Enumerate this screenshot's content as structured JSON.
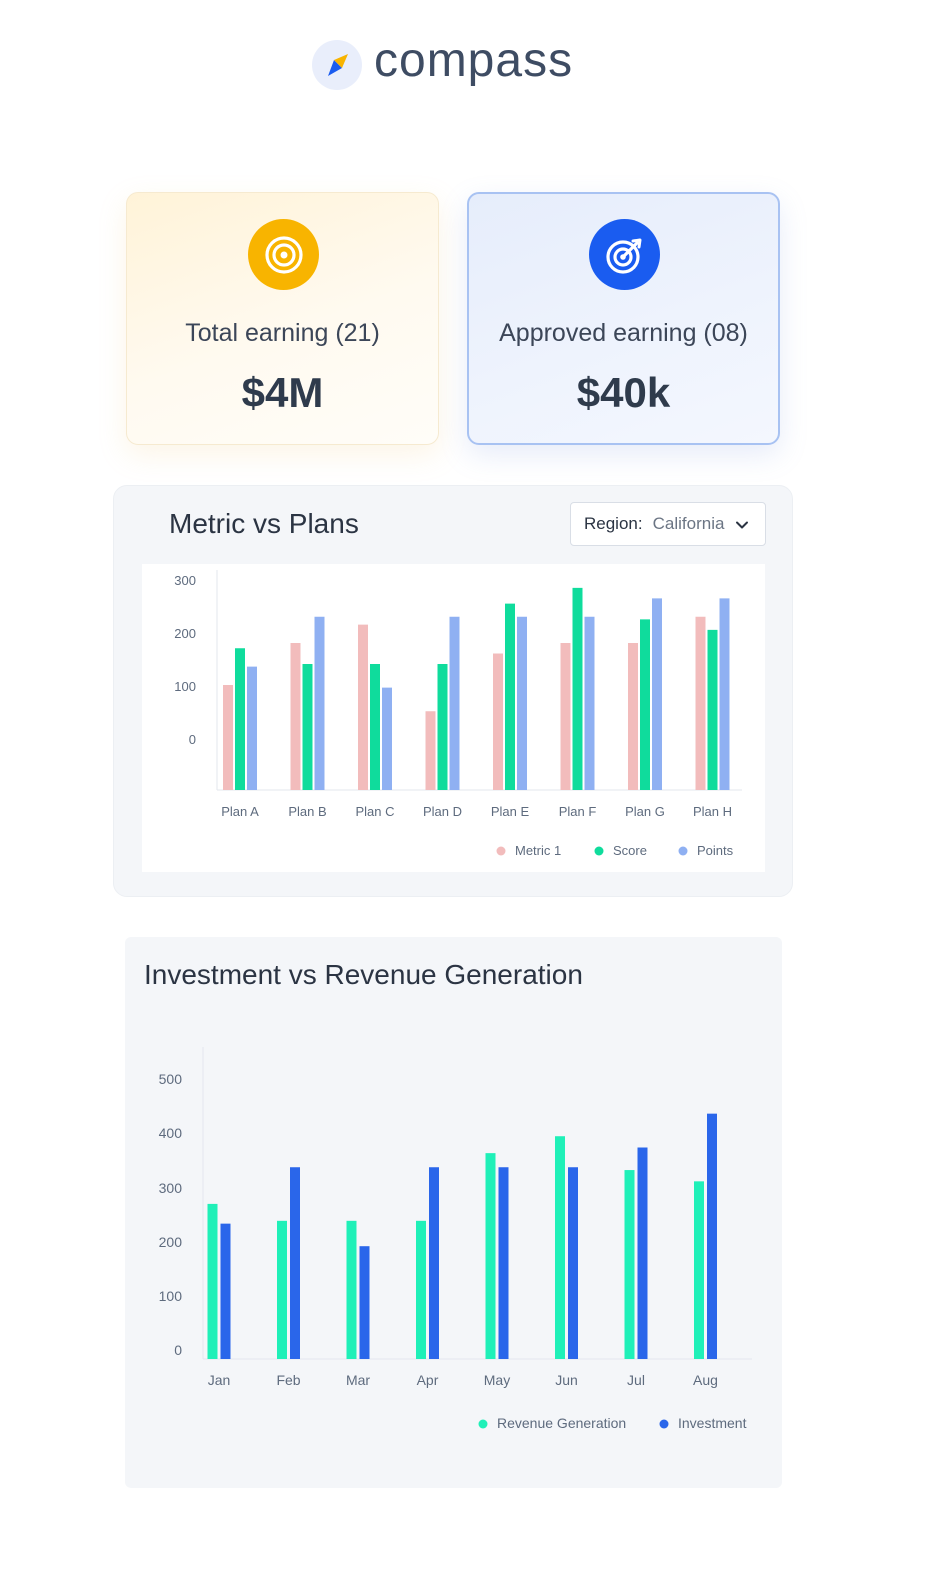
{
  "brand": {
    "name": "compass"
  },
  "cards": [
    {
      "label": "Total earning (21)",
      "value": "$4M",
      "icon": "target-icon",
      "color": "#f8b400"
    },
    {
      "label": "Approved earning (08)",
      "value": "$40k",
      "icon": "target-arrow-icon",
      "color": "#1a5cf0"
    }
  ],
  "metric_panel": {
    "title": "Metric vs Plans",
    "region_label": "Region:",
    "region_value": "California"
  },
  "invest_panel": {
    "title": "Investment vs Revenue Generation"
  },
  "chart_data": [
    {
      "type": "bar",
      "title": "Metric vs Plans",
      "categories": [
        "Plan A",
        "Plan B",
        "Plan C",
        "Plan D",
        "Plan E",
        "Plan F",
        "Plan G",
        "Plan H"
      ],
      "yticks": [
        "300",
        "200",
        "100",
        "0"
      ],
      "ylim": [
        0,
        400
      ],
      "grid": false,
      "legend_position": "bottom-right",
      "series": [
        {
          "name": "Metric 1",
          "color": "#f2bcbc",
          "values": [
            200,
            280,
            315,
            150,
            260,
            280,
            280,
            330
          ]
        },
        {
          "name": "Score",
          "color": "#0fdc9c",
          "values": [
            270,
            240,
            240,
            240,
            355,
            385,
            325,
            305
          ]
        },
        {
          "name": "Points",
          "color": "#8fb0f2",
          "values": [
            235,
            330,
            195,
            330,
            330,
            330,
            365,
            365
          ]
        }
      ]
    },
    {
      "type": "bar",
      "title": "Investment vs Revenue Generation",
      "categories": [
        "Jan",
        "Feb",
        "Mar",
        "Apr",
        "May",
        "Jun",
        "Jul",
        "Aug"
      ],
      "yticks": [
        "500",
        "400",
        "300",
        "200",
        "100",
        "0"
      ],
      "ylim": [
        0,
        500
      ],
      "grid": false,
      "legend_position": "bottom-right",
      "series": [
        {
          "name": "Revenue Generation",
          "color": "#1ff0b8",
          "values": [
            275,
            245,
            245,
            245,
            365,
            395,
            335,
            315
          ]
        },
        {
          "name": "Investment",
          "color": "#2a66ea",
          "values": [
            240,
            340,
            200,
            340,
            340,
            340,
            375,
            435
          ]
        }
      ]
    }
  ]
}
